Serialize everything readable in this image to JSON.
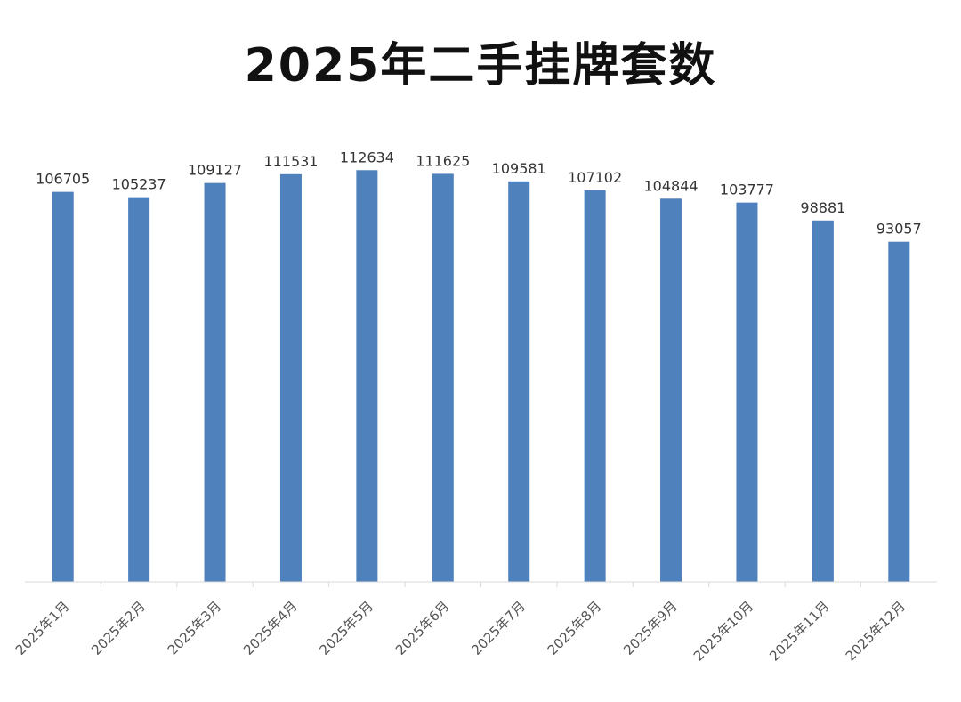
{
  "chart_data": {
    "type": "bar",
    "title": "2025年二手挂牌套数",
    "categories": [
      "2025年1月",
      "2025年2月",
      "2025年3月",
      "2025年4月",
      "2025年5月",
      "2025年6月",
      "2025年7月",
      "2025年8月",
      "2025年9月",
      "2025年10月",
      "2025年11月",
      "2025年12月"
    ],
    "values": [
      106705,
      105237,
      109127,
      111531,
      112634,
      111625,
      109581,
      107102,
      104844,
      103777,
      98881,
      93057
    ],
    "ylim": [
      0,
      120000
    ],
    "grid": false,
    "legend": "none",
    "bar_color": "#4F81BD",
    "axis_color": "#D9D9D9"
  }
}
